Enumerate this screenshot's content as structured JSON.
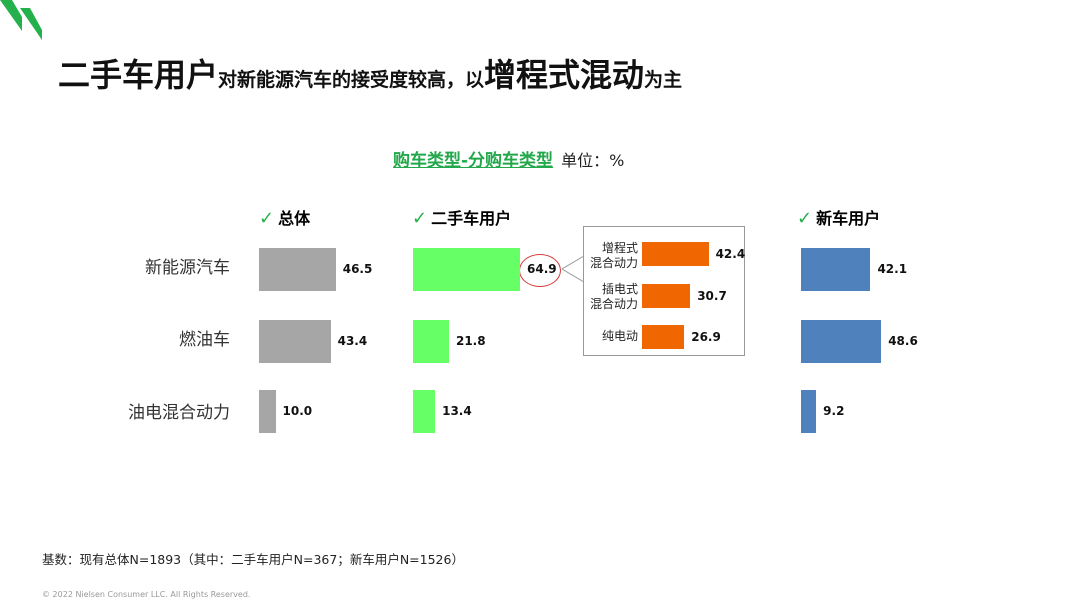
{
  "title": {
    "part1": "二手车用户",
    "part2": "对新能源汽车的接受度较高，以",
    "part3": "增程式混动",
    "part4": "为主"
  },
  "subtitle": "购车类型-分购车类型",
  "unit": "单位：%",
  "colors": {
    "brand_green": "#24b14c",
    "total_bar": "#a6a6a6",
    "used_car_bar": "#66ff66",
    "sub_bar": "#f06600",
    "new_car_bar": "#4f81bd",
    "highlight_circle": "#d83a3a"
  },
  "chart_data": {
    "type": "bar",
    "orientation": "horizontal",
    "categories": [
      "新能源汽车",
      "燃油车",
      "油电混合动力"
    ],
    "series": [
      {
        "name": "总体",
        "values": [
          46.5,
          43.4,
          10.0
        ]
      },
      {
        "name": "二手车用户",
        "values": [
          64.9,
          21.8,
          13.4
        ]
      },
      {
        "name": "新车用户",
        "values": [
          42.1,
          48.6,
          9.2
        ]
      }
    ],
    "breakdown": {
      "parent_series": "二手车用户",
      "parent_category": "新能源汽车",
      "categories": [
        "增程式\n混合动力",
        "插电式\n混合动力",
        "纯电动"
      ],
      "values": [
        42.4,
        30.7,
        26.9
      ]
    },
    "value_labels": {
      "series": [
        [
          "46.5",
          "43.4",
          "10.0"
        ],
        [
          "64.9",
          "21.8",
          "13.4"
        ],
        [
          "42.1",
          "48.6",
          "9.2"
        ]
      ],
      "breakdown": [
        "42.4",
        "30.7",
        "26.9"
      ]
    },
    "highlighted": {
      "series": "二手车用户",
      "category": "新能源汽车"
    },
    "checkmark": "✓",
    "legend": "none",
    "grid": false
  },
  "footnote": "基数：现有总体N=1893（其中：二手车用户N=367；新车用户N=1526）",
  "copyright": "© 2022 Nielsen Consumer LLC. All Rights Reserved."
}
